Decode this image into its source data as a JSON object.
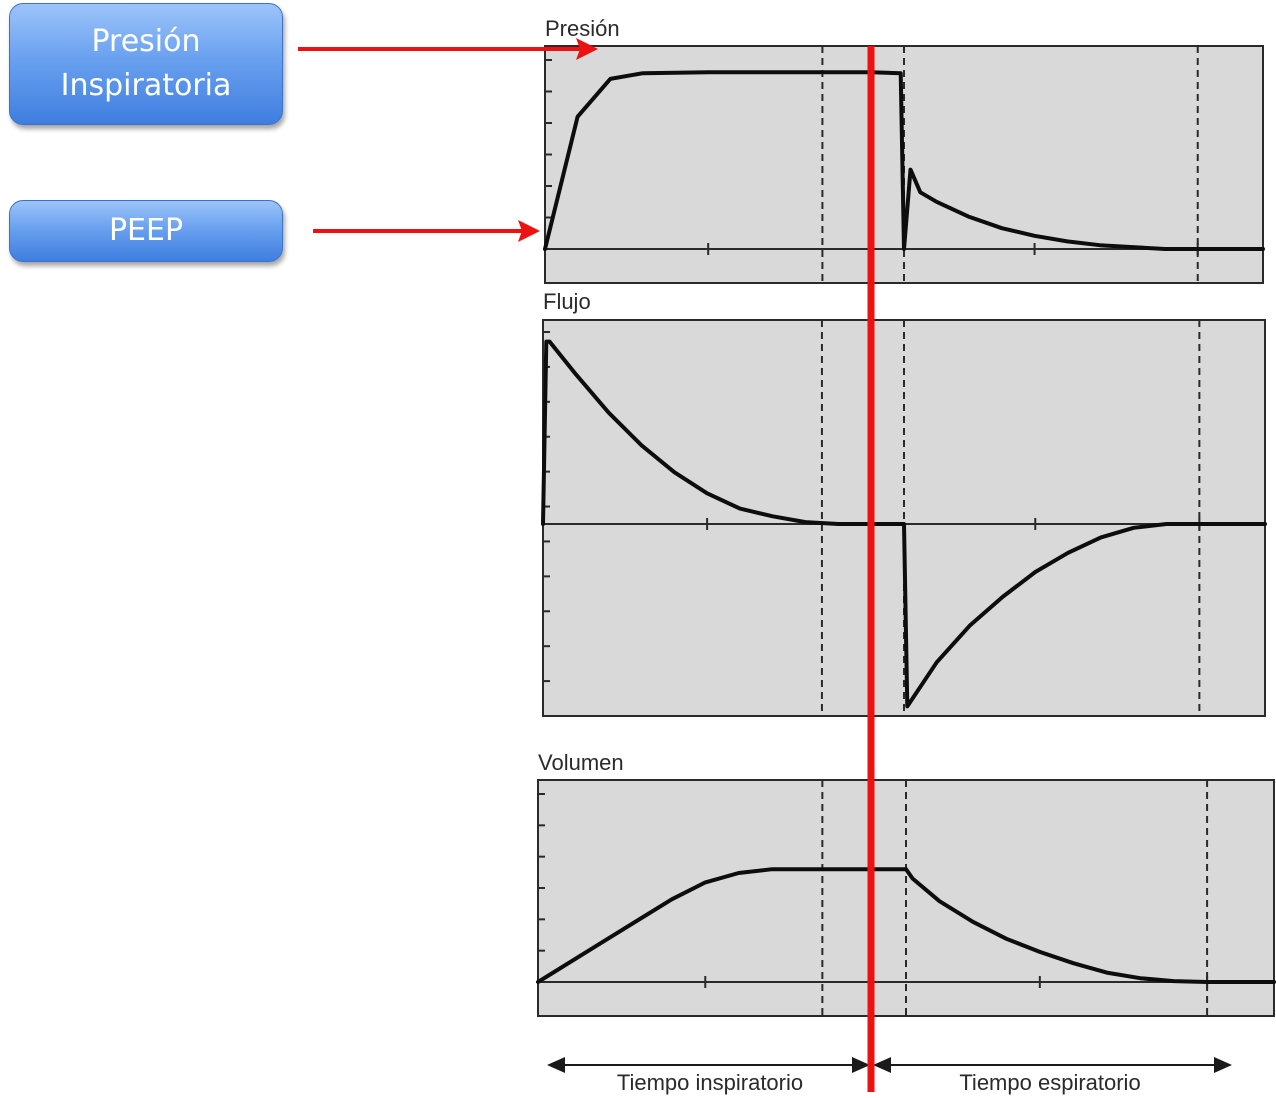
{
  "callouts": {
    "presion_inspiratoria": "Presión\nInspiratoria",
    "peep": "PEEP"
  },
  "panels": [
    {
      "id": "pressure",
      "title": "Presión"
    },
    {
      "id": "flow",
      "title": "Flujo"
    },
    {
      "id": "volume",
      "title": "Volumen"
    }
  ],
  "phases": {
    "inspiratory": "Tiempo inspiratorio",
    "expiratory": "Tiempo espiratorio"
  },
  "colors": {
    "panel_fill": "#d9d9d9",
    "curve": "#0d0d0d",
    "annotation_red": "#ee1111",
    "callout_blue": "#5b93ea"
  },
  "chart_data": [
    {
      "type": "line",
      "title": "Presión",
      "xlabel": "",
      "ylabel": "",
      "xlim": [
        0,
        2.2
      ],
      "ylim": [
        0,
        1
      ],
      "grid": false,
      "series": [
        {
          "x": [
            0,
            0.05,
            0.1,
            0.2,
            0.3,
            0.5,
            0.8,
            1.0,
            1.09,
            1.1,
            1.12,
            1.15,
            1.2,
            1.3,
            1.4,
            1.5,
            1.6,
            1.7,
            1.8,
            1.9,
            2.0,
            2.2
          ],
          "values": [
            0,
            0.35,
            0.7,
            0.9,
            0.93,
            0.935,
            0.935,
            0.935,
            0.93,
            0,
            0.42,
            0.3,
            0.25,
            0.17,
            0.11,
            0.07,
            0.04,
            0.02,
            0.01,
            0,
            0,
            0
          ]
        }
      ],
      "vlines": [
        0.85,
        1.1,
        2.0
      ]
    },
    {
      "type": "line",
      "title": "Flujo",
      "xlabel": "",
      "ylabel": "",
      "xlim": [
        0,
        2.2
      ],
      "ylim": [
        -1,
        1
      ],
      "grid": false,
      "series": [
        {
          "x": [
            0,
            0.01,
            0.02,
            0.1,
            0.2,
            0.3,
            0.4,
            0.5,
            0.6,
            0.7,
            0.8,
            0.9,
            1.0,
            1.1,
            1.11,
            1.2,
            1.3,
            1.4,
            1.5,
            1.6,
            1.7,
            1.8,
            1.9,
            2.0,
            2.1,
            2.2
          ],
          "values": [
            0,
            0.95,
            0.95,
            0.78,
            0.58,
            0.41,
            0.27,
            0.16,
            0.08,
            0.04,
            0.01,
            0,
            0,
            0,
            -0.95,
            -0.72,
            -0.53,
            -0.38,
            -0.25,
            -0.15,
            -0.07,
            -0.02,
            0,
            0,
            0,
            0
          ]
        }
      ],
      "vlines": [
        0.85,
        1.1,
        2.0
      ]
    },
    {
      "type": "line",
      "title": "Volumen",
      "xlabel": "",
      "ylabel": "",
      "xlim": [
        0,
        2.2
      ],
      "ylim": [
        0,
        1
      ],
      "grid": false,
      "series": [
        {
          "x": [
            0,
            0.2,
            0.4,
            0.5,
            0.6,
            0.7,
            0.85,
            1.0,
            1.1,
            1.12,
            1.2,
            1.3,
            1.4,
            1.5,
            1.6,
            1.7,
            1.8,
            1.9,
            2.0,
            2.1,
            2.2
          ],
          "values": [
            0,
            0.22,
            0.44,
            0.53,
            0.58,
            0.6,
            0.6,
            0.6,
            0.6,
            0.55,
            0.43,
            0.32,
            0.23,
            0.16,
            0.1,
            0.05,
            0.02,
            0.005,
            0,
            0,
            0
          ]
        }
      ],
      "vlines": [
        0.85,
        1.1,
        2.0
      ]
    }
  ]
}
